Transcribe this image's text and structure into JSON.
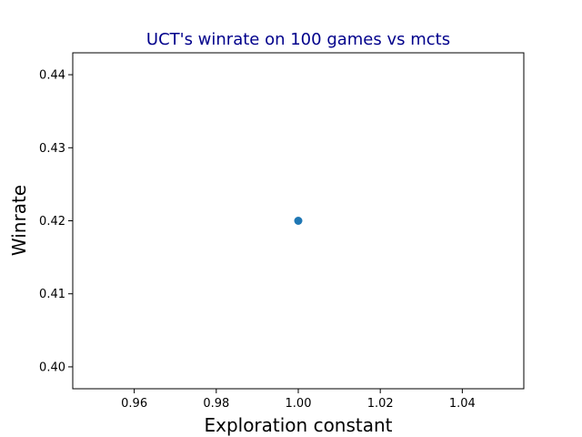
{
  "chart_data": {
    "type": "scatter",
    "title": "UCT's winrate on 100 games vs mcts",
    "xlabel": "Exploration constant",
    "ylabel": "Winrate",
    "xlim": [
      0.945,
      1.055
    ],
    "ylim": [
      0.397,
      0.443
    ],
    "xticks": [
      0.96,
      0.98,
      1.0,
      1.02,
      1.04
    ],
    "xtick_labels": [
      "0.96",
      "0.98",
      "1.00",
      "1.02",
      "1.04"
    ],
    "yticks": [
      0.4,
      0.41,
      0.42,
      0.43,
      0.44
    ],
    "ytick_labels": [
      "0.40",
      "0.41",
      "0.42",
      "0.43",
      "0.44"
    ],
    "grid": false,
    "points": [
      {
        "x": 1.0,
        "y": 0.42
      }
    ],
    "colors": {
      "title": "#00008b",
      "marker": "#1f77b4",
      "axes": "#000000"
    }
  }
}
